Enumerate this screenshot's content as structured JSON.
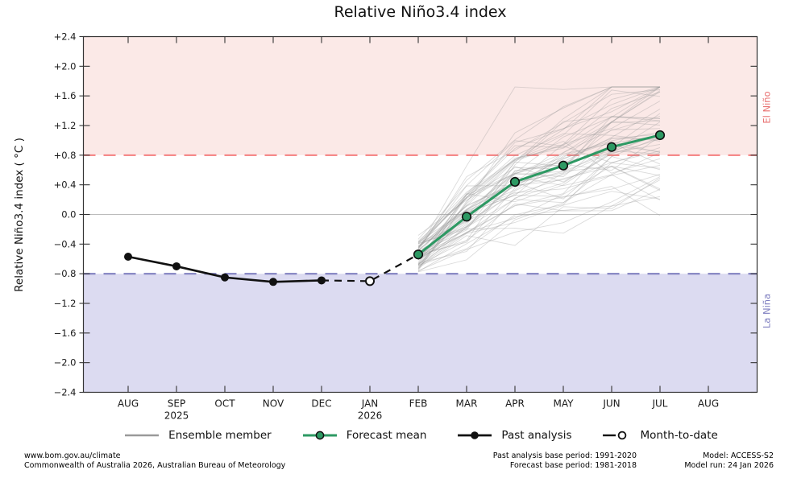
{
  "chart_data": {
    "type": "line",
    "title": "Relative Niño3.4 index",
    "ylabel": "Relative Niño3.4 index ( °C )",
    "ylim": [
      -2.4,
      2.4
    ],
    "ytick_step": 0.4,
    "grid": "zero-line-only",
    "months": [
      "AUG",
      "SEP",
      "OCT",
      "NOV",
      "DEC",
      "JAN",
      "FEB",
      "MAR",
      "APR",
      "MAY",
      "JUN",
      "JUL",
      "AUG"
    ],
    "year_labels": [
      {
        "month_index": 1,
        "label": "2025"
      },
      {
        "month_index": 5,
        "label": "2026"
      }
    ],
    "series": [
      {
        "name": "Past analysis",
        "style": "solid-black-dots",
        "x_month_indices": [
          0,
          1,
          2,
          3,
          4
        ],
        "values": [
          -0.57,
          -0.7,
          -0.85,
          -0.91,
          -0.89
        ]
      },
      {
        "name": "Month-to-date",
        "style": "dashed-black-open-circle",
        "x_month_indices": [
          5
        ],
        "values": [
          -0.9
        ]
      },
      {
        "name": "Forecast mean",
        "style": "solid-green-dots",
        "x_month_indices": [
          6,
          7,
          8,
          9,
          10,
          11
        ],
        "values": [
          -0.54,
          -0.03,
          0.44,
          0.66,
          0.91,
          1.07
        ]
      }
    ],
    "ensemble": {
      "name": "Ensemble member",
      "count": 60,
      "seed": 42,
      "x_month_indices": [
        6,
        7,
        8,
        9,
        10,
        11
      ],
      "start_sigma": 0.12,
      "step_sigma": 0.24,
      "value_clamp": [
        -1.0,
        1.72
      ]
    },
    "thresholds": {
      "el_nino": 0.8,
      "la_nina": -0.8
    },
    "region_labels": {
      "el_nino": "El Niño",
      "la_nina": "La Niña"
    },
    "colors": {
      "el_nino_band": "#fbe9e7",
      "la_nina_band": "#dcdbf1",
      "el_nino_line": "#f57e7e",
      "la_nina_line": "#8181c0",
      "el_nino_text": "#e87070",
      "la_nina_text": "#7e7ec0",
      "forecast": "#2d9963",
      "past": "#111111",
      "ensemble": "#999999",
      "zero_line": "#bbbbbb",
      "frame": "#333333",
      "tick_label": "#1a1a1a"
    }
  },
  "legend": {
    "items": [
      {
        "label": "Ensemble member"
      },
      {
        "label": "Forecast mean"
      },
      {
        "label": "Past analysis"
      },
      {
        "label": "Month-to-date"
      }
    ]
  },
  "footer": {
    "url": "www.bom.gov.au/climate",
    "copyright": "Commonwealth of Australia 2026, Australian Bureau of Meteorology",
    "past_base": "Past analysis base period: 1991-2020",
    "forecast_base": "Forecast base period: 1981-2018",
    "model": "Model: ACCESS-S2",
    "model_run": "Model run: 24 Jan 2026"
  }
}
